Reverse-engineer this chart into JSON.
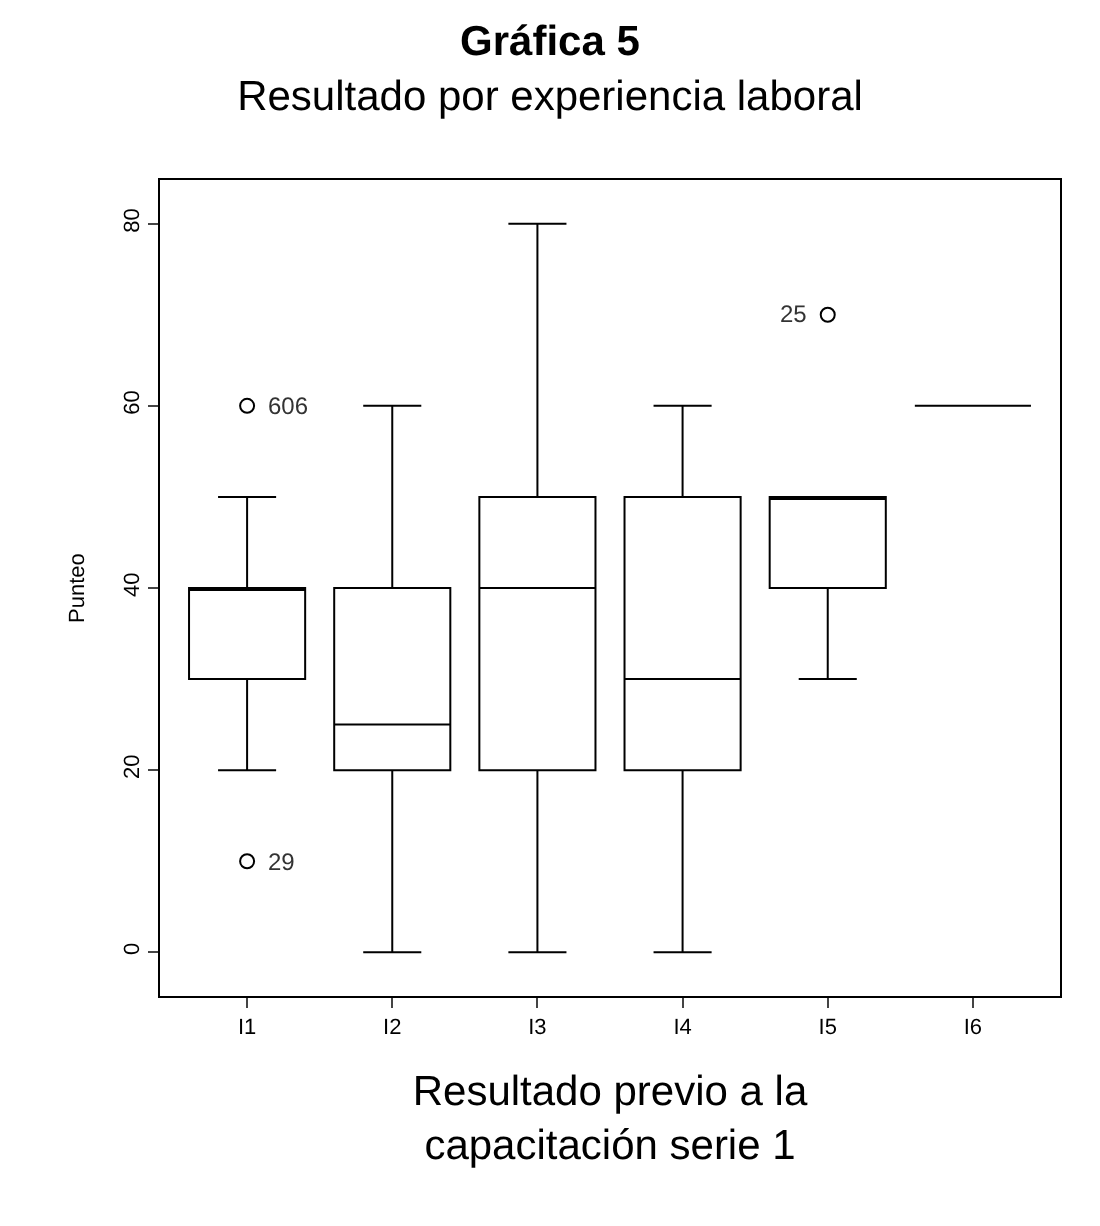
{
  "chart_data": {
    "type": "box",
    "title": "Gráfica 5",
    "subtitle": "Resultado por experiencia laboral",
    "xlabel": "Resultado previo a la\ncapacitación serie 1",
    "ylabel": "Punteo",
    "categories": [
      "I1",
      "I2",
      "I3",
      "I4",
      "I5",
      "I6"
    ],
    "boxes": [
      {
        "low": 20,
        "q1": 30,
        "median": 40,
        "q3": 40,
        "high": 50,
        "outliers": [
          10,
          60
        ]
      },
      {
        "low": 0,
        "q1": 20,
        "median": 25,
        "q3": 40,
        "high": 60
      },
      {
        "low": 0,
        "q1": 20,
        "median": 40,
        "q3": 50,
        "high": 80
      },
      {
        "low": 0,
        "q1": 20,
        "median": 30,
        "q3": 50,
        "high": 60
      },
      {
        "low": 30,
        "q1": 40,
        "median": 50,
        "q3": 50,
        "high": 50,
        "outliers": [
          70
        ]
      },
      {
        "low": 60,
        "q1": 60,
        "median": 60,
        "q3": 60,
        "high": 60
      }
    ],
    "color": "#000000",
    "ylim": [
      -4.8,
      84.8
    ],
    "yticks": [
      0,
      20,
      40,
      60,
      80
    ],
    "marker": "circle",
    "annotations": [
      "29",
      "606",
      "25"
    ]
  }
}
